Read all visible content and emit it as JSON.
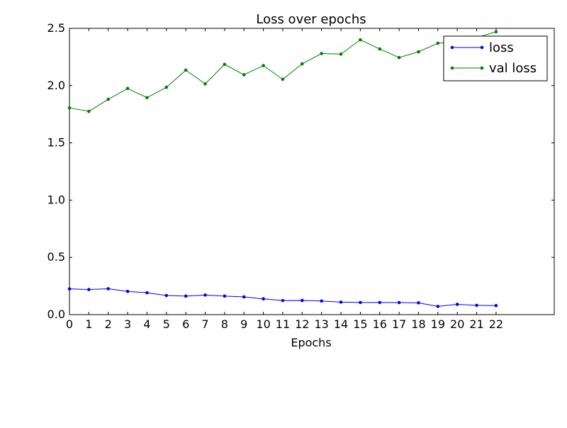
{
  "chart_data": {
    "type": "line",
    "title": "Loss over epochs",
    "xlabel": "Epochs",
    "ylabel": "",
    "xlim": [
      0,
      25
    ],
    "ylim": [
      0,
      2.5
    ],
    "x_ticks": [
      0,
      1,
      2,
      3,
      4,
      5,
      6,
      7,
      8,
      9,
      10,
      11,
      12,
      13,
      14,
      15,
      16,
      17,
      18,
      19,
      20,
      21,
      22
    ],
    "y_ticks": [
      0.0,
      0.5,
      1.0,
      1.5,
      2.0,
      2.5
    ],
    "y_tick_labels": [
      "0.0",
      "0.5",
      "1.0",
      "1.5",
      "2.0",
      "2.5"
    ],
    "grid": false,
    "legend_position": "top-right",
    "x": [
      0,
      1,
      2,
      3,
      4,
      5,
      6,
      7,
      8,
      9,
      10,
      11,
      12,
      13,
      14,
      15,
      16,
      17,
      18,
      19,
      20,
      21,
      22
    ],
    "series": [
      {
        "name": "loss",
        "color": "#0000ff",
        "values": [
          0.225,
          0.219,
          0.226,
          0.203,
          0.191,
          0.167,
          0.162,
          0.171,
          0.162,
          0.155,
          0.138,
          0.123,
          0.124,
          0.119,
          0.109,
          0.106,
          0.106,
          0.105,
          0.103,
          0.072,
          0.09,
          0.081,
          0.079
        ]
      },
      {
        "name": "val loss",
        "color": "#008000",
        "values": [
          1.805,
          1.775,
          1.88,
          1.975,
          1.895,
          1.985,
          2.135,
          2.015,
          2.185,
          2.095,
          2.175,
          2.055,
          2.19,
          2.28,
          2.275,
          2.4,
          2.32,
          2.245,
          2.295,
          2.37,
          2.38,
          2.42,
          2.47
        ]
      }
    ]
  }
}
